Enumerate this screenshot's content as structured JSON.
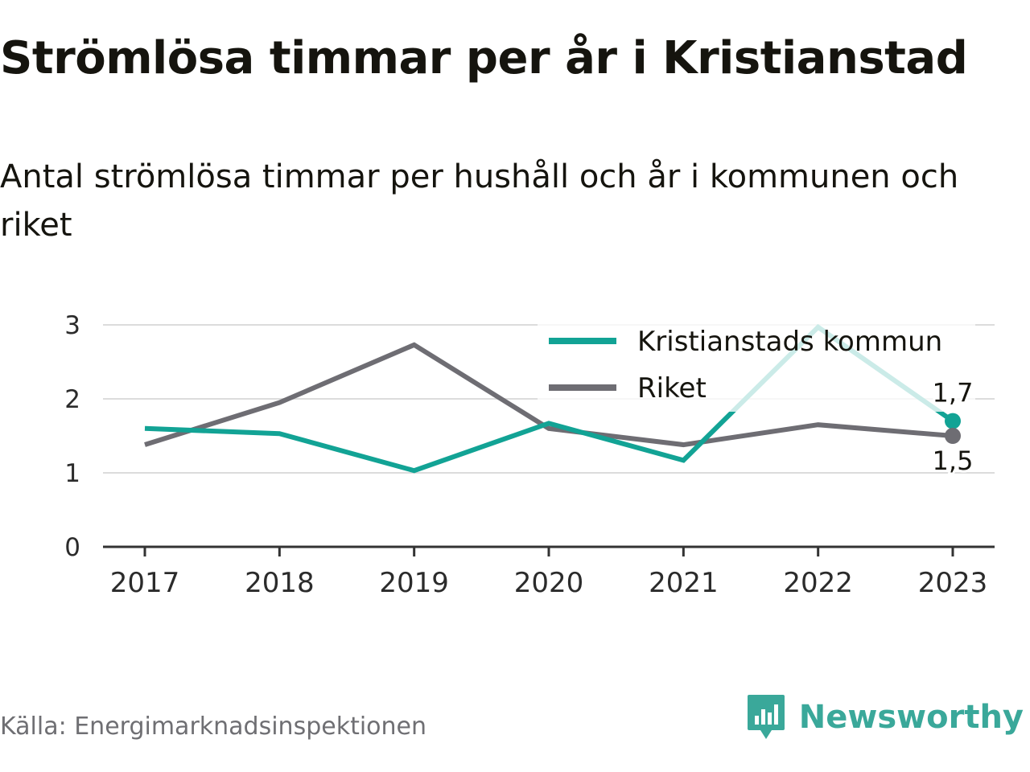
{
  "title": "Strömlösa timmar per år i Kristianstad",
  "subtitle": "Antal strömlösa timmar per hushåll och år i kommunen och riket",
  "source": "Källa: Energimarknadsinspektionen",
  "brand": {
    "name": "Newsworthy",
    "icon": "newsworthy-logo-icon",
    "color": "#3aa89a"
  },
  "chart_data": {
    "type": "line",
    "x": [
      "2017",
      "2018",
      "2019",
      "2020",
      "2021",
      "2022",
      "2023"
    ],
    "ylim": [
      0,
      3
    ],
    "yticks": [
      "0",
      "1",
      "2",
      "3"
    ],
    "grid": true,
    "legend_position": "top-right",
    "series": [
      {
        "name": "Kristianstads kommun",
        "color": "#12a395",
        "values": [
          1.6,
          1.53,
          1.03,
          1.67,
          1.17,
          2.97,
          1.7
        ],
        "end_label": "1,7"
      },
      {
        "name": "Riket",
        "color": "#6e6d73",
        "values": [
          1.38,
          1.95,
          2.73,
          1.6,
          1.38,
          1.65,
          1.5
        ],
        "end_label": "1,5"
      }
    ]
  }
}
